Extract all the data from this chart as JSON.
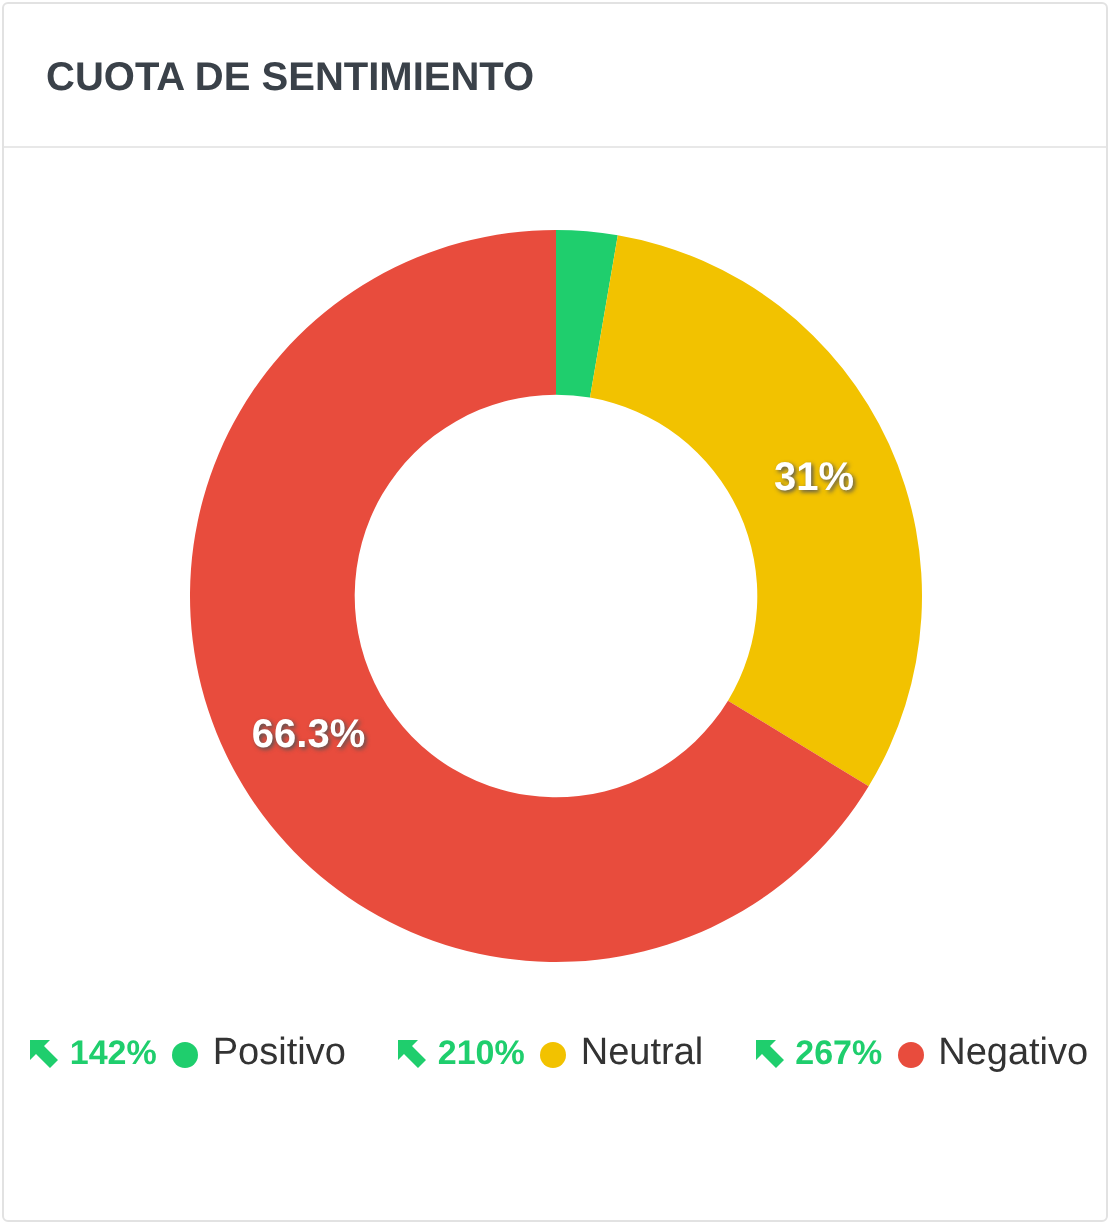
{
  "chart_data": {
    "type": "donut",
    "title": "CUOTA DE SENTIMIENTO",
    "categories": [
      "Positivo",
      "Neutral",
      "Negativo"
    ],
    "values": [
      2.7,
      31,
      66.3
    ],
    "colors": [
      "#1fce6d",
      "#f2c200",
      "#e84c3d"
    ],
    "value_labels": [
      null,
      "31%",
      "66.3%"
    ],
    "annotations": [
      "142%",
      "210%",
      "267%"
    ],
    "legend": "bottom"
  }
}
